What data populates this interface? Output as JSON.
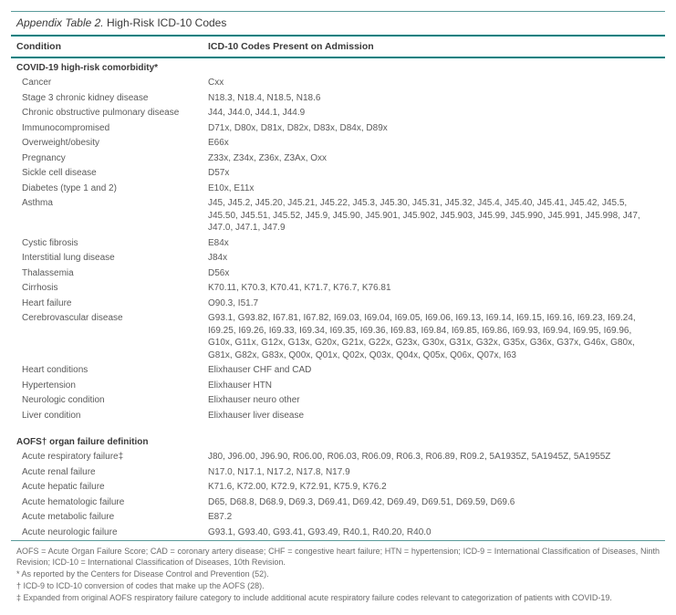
{
  "title_prefix": "Appendix Table 2.",
  "title_rest": " High-Risk ICD-10 Codes",
  "columns": [
    "Condition",
    "ICD-10 Codes Present on Admission"
  ],
  "section1": {
    "heading": "COVID-19 high-risk comorbidity*",
    "rows": [
      {
        "cond": "Cancer",
        "codes": "Cxx"
      },
      {
        "cond": "Stage 3 chronic kidney disease",
        "codes": "N18.3, N18.4, N18.5, N18.6"
      },
      {
        "cond": "Chronic obstructive pulmonary disease",
        "codes": "J44, J44.0, J44.1, J44.9"
      },
      {
        "cond": "Immunocompromised",
        "codes": "D71x, D80x, D81x, D82x, D83x, D84x, D89x"
      },
      {
        "cond": "Overweight/obesity",
        "codes": "E66x"
      },
      {
        "cond": "Pregnancy",
        "codes": "Z33x, Z34x, Z36x, Z3Ax, Oxx"
      },
      {
        "cond": "Sickle cell disease",
        "codes": "D57x"
      },
      {
        "cond": "Diabetes (type 1 and 2)",
        "codes": "E10x, E11x"
      },
      {
        "cond": "Asthma",
        "codes": "J45, J45.2, J45.20, J45.21, J45.22, J45.3, J45.30, J45.31, J45.32, J45.4, J45.40, J45.41, J45.42, J45.5, J45.50, J45.51, J45.52, J45.9, J45.90, J45.901, J45.902, J45.903, J45.99, J45.990, J45.991, J45.998, J47, J47.0, J47.1, J47.9"
      },
      {
        "cond": "Cystic fibrosis",
        "codes": "E84x"
      },
      {
        "cond": "Interstitial lung disease",
        "codes": "J84x"
      },
      {
        "cond": "Thalassemia",
        "codes": "D56x"
      },
      {
        "cond": "Cirrhosis",
        "codes": "K70.11, K70.3, K70.41, K71.7, K76.7, K76.81"
      },
      {
        "cond": "Heart failure",
        "codes": "O90.3, I51.7"
      },
      {
        "cond": "Cerebrovascular disease",
        "codes": "G93.1, G93.82, I67.81, I67.82, I69.03, I69.04, I69.05, I69.06, I69.13, I69.14, I69.15, I69.16, I69.23, I69.24, I69.25, I69.26, I69.33, I69.34, I69.35, I69.36, I69.83, I69.84, I69.85, I69.86, I69.93, I69.94, I69.95, I69.96, G10x, G11x, G12x, G13x, G20x, G21x, G22x, G23x, G30x, G31x, G32x, G35x, G36x, G37x, G46x, G80x, G81x, G82x, G83x, Q00x, Q01x, Q02x, Q03x, Q04x, Q05x, Q06x, Q07x, I63"
      },
      {
        "cond": "Heart conditions",
        "codes": "Elixhauser CHF and CAD"
      },
      {
        "cond": "Hypertension",
        "codes": "Elixhauser HTN"
      },
      {
        "cond": "Neurologic condition",
        "codes": "Elixhauser neuro other"
      },
      {
        "cond": "Liver condition",
        "codes": "Elixhauser liver disease"
      }
    ]
  },
  "section2": {
    "heading": "AOFS† organ failure definition",
    "rows": [
      {
        "cond": "Acute respiratory failure‡",
        "codes": "J80, J96.00, J96.90, R06.00, R06.03, R06.09, R06.3, R06.89, R09.2, 5A1935Z, 5A1945Z, 5A1955Z"
      },
      {
        "cond": "Acute renal failure",
        "codes": "N17.0, N17.1, N17.2, N17.8, N17.9"
      },
      {
        "cond": "Acute hepatic failure",
        "codes": "K71.6, K72.00, K72.9, K72.91, K75.9, K76.2"
      },
      {
        "cond": "Acute hematologic failure",
        "codes": "D65, D68.8, D68.9, D69.3, D69.41, D69.42, D69.49, D69.51, D69.59, D69.6"
      },
      {
        "cond": "Acute metabolic failure",
        "codes": "E87.2"
      },
      {
        "cond": "Acute neurologic failure",
        "codes": "G93.1, G93.40, G93.41, G93.49, R40.1, R40.20, R40.0"
      }
    ]
  },
  "footnotes": [
    "AOFS = Acute Organ Failure Score; CAD = coronary artery disease; CHF = congestive heart failure; HTN = hypertension; ICD-9 = International Classification of Diseases, Ninth Revision; ICD-10 = International Classification of Diseases, 10th Revision.",
    "* As reported by the Centers for Disease Control and Prevention (52).",
    "† ICD-9 to ICD-10 conversion of codes that make up the AOFS (28).",
    "‡ Expanded from original AOFS respiratory failure category to include additional acute respiratory failure codes relevant to categorization of patients with COVID-19."
  ],
  "colors": {
    "teal": "#008080",
    "teal_light": "#5a9b9b",
    "text_dark": "#3a3a3a",
    "text_body": "#5a5a5a",
    "text_foot": "#6a6a6a",
    "bg": "#ffffff"
  }
}
